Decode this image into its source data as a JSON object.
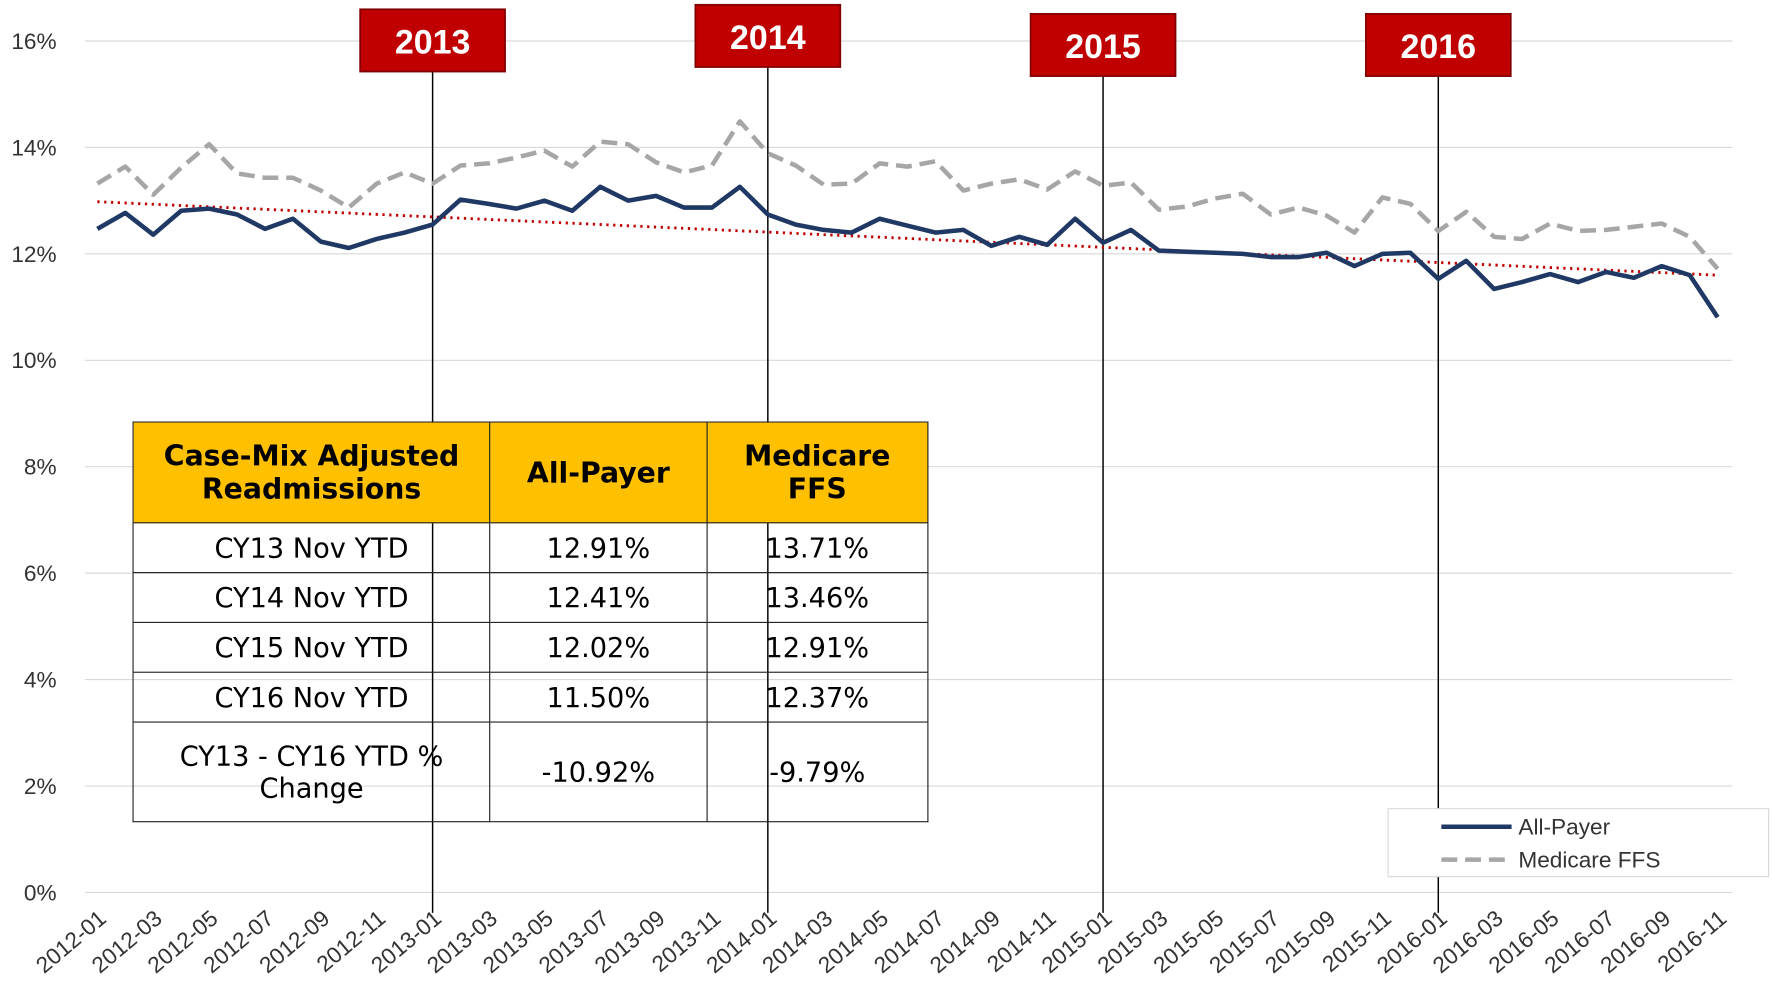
{
  "chart_data": {
    "type": "line",
    "categories": [
      "2012-01",
      null,
      "2012-03",
      null,
      "2012-05",
      null,
      "2012-07",
      null,
      "2012-09",
      null,
      "2012-11",
      null,
      "2013-01",
      null,
      "2013-03",
      null,
      "2013-05",
      null,
      "2013-07",
      null,
      "2013-09",
      null,
      "2013-11",
      null,
      "2014-01",
      null,
      "2014-03",
      null,
      "2014-05",
      null,
      "2014-07",
      null,
      "2014-09",
      null,
      "2014-11",
      null,
      "2015-01",
      null,
      "2015-03",
      null,
      "2015-05",
      null,
      "2015-07",
      null,
      "2015-09",
      null,
      "2015-11",
      null,
      "2016-01",
      null,
      "2016-03",
      null,
      "2016-05",
      null,
      "2016-07",
      null,
      "2016-09",
      null,
      "2016-11"
    ],
    "series": [
      {
        "name": "All-Payer",
        "color": "#1f3864",
        "style": "solid",
        "values": [
          12.47,
          12.77,
          12.36,
          12.81,
          12.85,
          12.74,
          12.47,
          12.66,
          12.23,
          12.11,
          12.28,
          12.4,
          12.55,
          13.02,
          12.94,
          12.85,
          13.0,
          12.81,
          13.26,
          13.0,
          13.09,
          12.87,
          12.87,
          13.26,
          12.74,
          12.55,
          12.45,
          12.4,
          12.66,
          12.53,
          12.4,
          12.45,
          12.15,
          12.32,
          12.17,
          12.66,
          12.21,
          12.45,
          12.06,
          12.04,
          12.02,
          12.0,
          11.94,
          11.94,
          12.02,
          11.77,
          12.0,
          12.02,
          11.53,
          11.87,
          11.34,
          11.47,
          11.62,
          11.47,
          11.66,
          11.55,
          11.77,
          11.6,
          10.81
        ]
      },
      {
        "name": "Medicare FFS",
        "color": "#a6a6a6",
        "style": "dashed",
        "values": [
          13.32,
          13.64,
          13.11,
          13.62,
          14.06,
          13.51,
          13.43,
          13.43,
          13.19,
          12.87,
          13.32,
          13.53,
          13.32,
          13.66,
          13.7,
          13.81,
          13.94,
          13.64,
          14.11,
          14.06,
          13.72,
          13.53,
          13.66,
          14.49,
          13.89,
          13.66,
          13.3,
          13.32,
          13.7,
          13.64,
          13.74,
          13.19,
          13.32,
          13.4,
          13.21,
          13.55,
          13.28,
          13.34,
          12.83,
          12.89,
          13.04,
          13.13,
          12.74,
          12.87,
          12.72,
          12.4,
          13.06,
          12.94,
          12.43,
          12.79,
          12.32,
          12.28,
          12.57,
          12.43,
          12.45,
          12.51,
          12.57,
          12.32,
          11.72
        ]
      }
    ],
    "trendline": {
      "color": "#c00000",
      "values": [
        12.98,
        11.6
      ]
    },
    "ylim": [
      0,
      16
    ],
    "yticks": [
      {
        "value": 0,
        "label": "0%"
      },
      {
        "value": 2,
        "label": "2%"
      },
      {
        "value": 4,
        "label": "4%"
      },
      {
        "value": 6,
        "label": "6%"
      },
      {
        "value": 8,
        "label": "8%"
      },
      {
        "value": 10,
        "label": "10%"
      },
      {
        "value": 12,
        "label": "12%"
      },
      {
        "value": 14,
        "label": "14%"
      },
      {
        "value": 16,
        "label": "16%"
      }
    ],
    "grid": true,
    "legend": "lower right",
    "annotations": [
      {
        "label": "2013",
        "x": "2013-01"
      },
      {
        "label": "2014",
        "x": "2014-01"
      },
      {
        "label": "2015",
        "x": "2015-01"
      },
      {
        "label": "2016",
        "x": "2016-01"
      }
    ],
    "table": {
      "header": [
        "Case-Mix Adjusted Readmissions",
        "All-Payer",
        "Medicare FFS"
      ],
      "rows": [
        [
          "CY13 Nov YTD",
          "12.91%",
          "13.71%"
        ],
        [
          "CY14 Nov YTD",
          "12.41%",
          "13.46%"
        ],
        [
          "CY15 Nov YTD",
          "12.02%",
          "12.91%"
        ],
        [
          "CY16 Nov YTD",
          "11.50%",
          "12.37%"
        ],
        [
          "CY13 - CY16 YTD % Change",
          "-10.92%",
          "-9.79%"
        ]
      ]
    }
  }
}
